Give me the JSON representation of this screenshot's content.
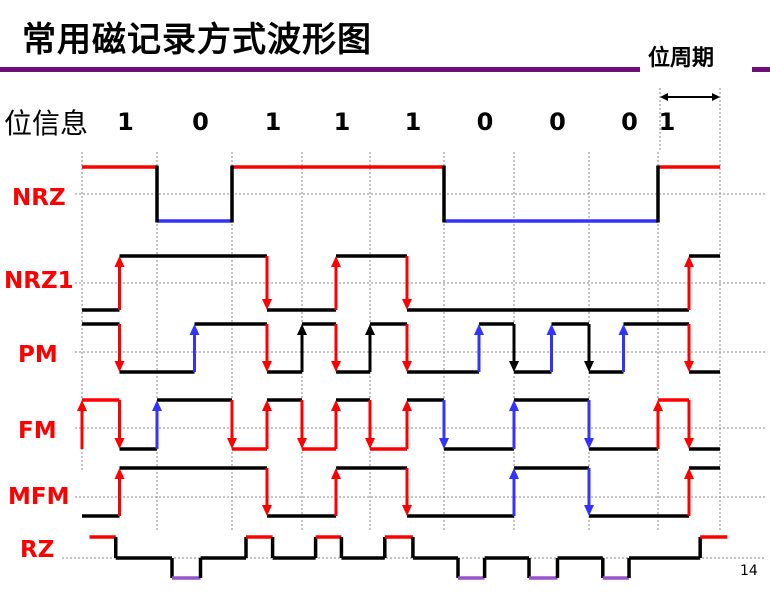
{
  "title": "常用磁记录方式波形图",
  "bit_period_label": "位周期",
  "bit_info_label": "位信息",
  "bits": [
    "1",
    "0",
    "1",
    "1",
    "1",
    "0",
    "0",
    "0",
    "1"
  ],
  "page_number": "14",
  "colors": {
    "rule": "#6f0f7a",
    "red": "#ff0000",
    "blue": "#3333ff",
    "black": "#000000",
    "purple": "#9955cc"
  },
  "rows": [
    {
      "label": "NRZ",
      "segments": [
        [
          0,
          1,
          "H",
          "red"
        ],
        [
          1,
          2,
          "L",
          "blue"
        ],
        [
          2,
          5,
          "H",
          "red"
        ],
        [
          5,
          8,
          "L",
          "blue"
        ],
        [
          8,
          9,
          "H",
          "red"
        ]
      ],
      "edges": [
        1,
        2,
        5,
        8
      ],
      "arrows": []
    },
    {
      "label": "NRZ1",
      "segments": [
        [
          0,
          0.5,
          "L",
          "black"
        ],
        [
          0.5,
          2.5,
          "H",
          "black"
        ],
        [
          2.5,
          3.5,
          "L",
          "black"
        ],
        [
          3.5,
          4.5,
          "H",
          "black"
        ],
        [
          4.5,
          8.5,
          "L",
          "black"
        ],
        [
          8.5,
          9,
          "H",
          "black"
        ]
      ],
      "edges": [],
      "arrows": [
        [
          0.5,
          "up",
          "red"
        ],
        [
          2.5,
          "down",
          "red"
        ],
        [
          3.5,
          "up",
          "red"
        ],
        [
          4.5,
          "down",
          "red"
        ],
        [
          8.5,
          "up",
          "red"
        ]
      ]
    },
    {
      "label": "PM",
      "segments": [
        [
          0,
          0.5,
          "H",
          "black"
        ],
        [
          0.5,
          1.5,
          "L",
          "black"
        ],
        [
          1.5,
          2.5,
          "H",
          "black"
        ],
        [
          2.5,
          3,
          "L",
          "black"
        ],
        [
          3,
          3.5,
          "H",
          "black"
        ],
        [
          3.5,
          4,
          "L",
          "black"
        ],
        [
          4,
          4.5,
          "H",
          "black"
        ],
        [
          4.5,
          5.5,
          "L",
          "black"
        ],
        [
          5.5,
          6,
          "H",
          "black"
        ],
        [
          6,
          6.5,
          "L",
          "black"
        ],
        [
          6.5,
          7,
          "H",
          "black"
        ],
        [
          7,
          7.5,
          "L",
          "black"
        ],
        [
          7.5,
          8.5,
          "H",
          "black"
        ],
        [
          8.5,
          9,
          "L",
          "black"
        ]
      ],
      "edges": [],
      "arrows": [
        [
          0.5,
          "down",
          "red"
        ],
        [
          1.5,
          "up",
          "blue"
        ],
        [
          2.5,
          "down",
          "red"
        ],
        [
          3,
          "up",
          "black"
        ],
        [
          3.5,
          "down",
          "red"
        ],
        [
          4,
          "up",
          "black"
        ],
        [
          4.5,
          "down",
          "red"
        ],
        [
          5.5,
          "up",
          "blue"
        ],
        [
          6,
          "down",
          "black"
        ],
        [
          6.5,
          "up",
          "blue"
        ],
        [
          7,
          "down",
          "black"
        ],
        [
          7.5,
          "up",
          "blue"
        ],
        [
          8.5,
          "down",
          "red"
        ]
      ]
    },
    {
      "label": "FM",
      "segments": [
        [
          0,
          0.5,
          "H",
          "red"
        ],
        [
          0.5,
          1,
          "L",
          "black"
        ],
        [
          1,
          2,
          "H",
          "black"
        ],
        [
          2,
          2.5,
          "L",
          "red"
        ],
        [
          2.5,
          3,
          "H",
          "black"
        ],
        [
          3,
          3.5,
          "L",
          "red"
        ],
        [
          3.5,
          4,
          "H",
          "black"
        ],
        [
          4,
          4.5,
          "L",
          "red"
        ],
        [
          4.5,
          5,
          "H",
          "black"
        ],
        [
          5,
          6,
          "L",
          "black"
        ],
        [
          6,
          7,
          "H",
          "black"
        ],
        [
          7,
          8,
          "L",
          "black"
        ],
        [
          8,
          8.5,
          "H",
          "red"
        ],
        [
          8.5,
          9,
          "L",
          "black"
        ]
      ],
      "edges": [],
      "arrows": [
        [
          0,
          "up",
          "red"
        ],
        [
          0.5,
          "down",
          "red"
        ],
        [
          1,
          "up",
          "blue"
        ],
        [
          2,
          "down",
          "red"
        ],
        [
          2.5,
          "up",
          "red"
        ],
        [
          3,
          "down",
          "red"
        ],
        [
          3.5,
          "up",
          "red"
        ],
        [
          4,
          "down",
          "red"
        ],
        [
          4.5,
          "up",
          "red"
        ],
        [
          5,
          "down",
          "blue"
        ],
        [
          6,
          "up",
          "blue"
        ],
        [
          7,
          "down",
          "blue"
        ],
        [
          8,
          "up",
          "red"
        ],
        [
          8.5,
          "down",
          "red"
        ]
      ]
    },
    {
      "label": "MFM",
      "segments": [
        [
          0,
          0.5,
          "L",
          "black"
        ],
        [
          0.5,
          2.5,
          "H",
          "black"
        ],
        [
          2.5,
          3.5,
          "L",
          "black"
        ],
        [
          3.5,
          4.5,
          "H",
          "black"
        ],
        [
          4.5,
          6,
          "L",
          "black"
        ],
        [
          6,
          7,
          "H",
          "black"
        ],
        [
          7,
          8.5,
          "L",
          "black"
        ],
        [
          8.5,
          9,
          "H",
          "black"
        ]
      ],
      "edges": [],
      "arrows": [
        [
          0.5,
          "up",
          "red"
        ],
        [
          2.5,
          "down",
          "red"
        ],
        [
          3.5,
          "up",
          "red"
        ],
        [
          4.5,
          "down",
          "red"
        ],
        [
          6,
          "up",
          "blue"
        ],
        [
          7,
          "down",
          "blue"
        ],
        [
          8.5,
          "up",
          "red"
        ]
      ]
    },
    {
      "label": "RZ",
      "segments": [],
      "edges": [],
      "arrows": []
    }
  ]
}
